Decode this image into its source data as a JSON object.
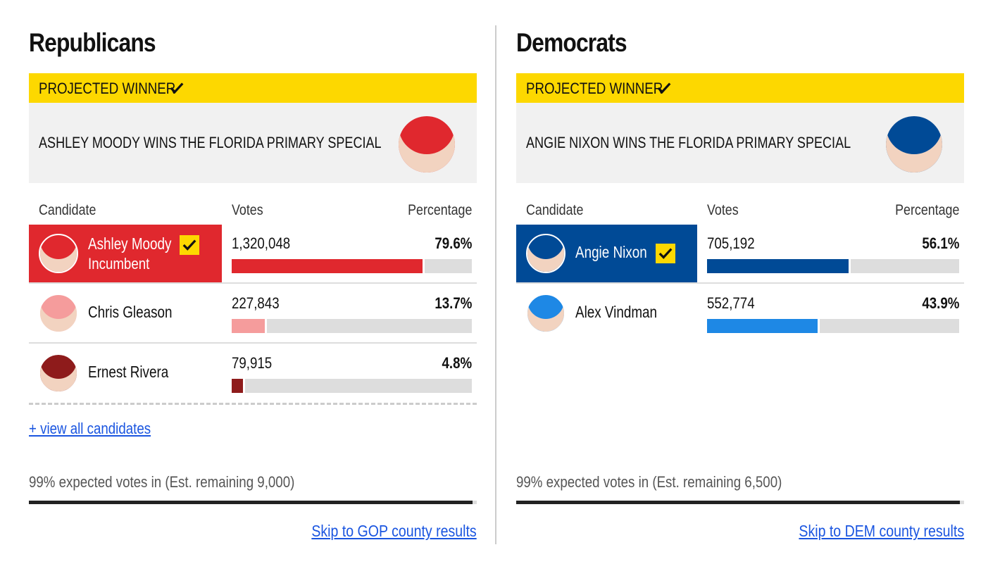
{
  "panels": [
    {
      "title": "Republicans",
      "banner": "PROJECTED WINNER",
      "headline": "ASHLEY MOODY WINS THE FLORIDA PRIMARY SPECIAL",
      "columns": [
        "Candidate",
        "Votes",
        "Percentage"
      ],
      "candidates": [
        {
          "name": "Ashley Moody",
          "note": "Incumbent",
          "votes": "1,320,048",
          "percent": 79.6,
          "percent_label": "79.6%",
          "color": "#e0282e",
          "winner": true
        },
        {
          "name": "Chris Gleason",
          "votes": "227,843",
          "percent": 13.7,
          "percent_label": "13.7%",
          "color": "#f59c9c",
          "winner": false
        },
        {
          "name": "Ernest Rivera",
          "votes": "79,915",
          "percent": 4.8,
          "percent_label": "4.8%",
          "color": "#8e1b1b",
          "winner": false
        }
      ],
      "view_all": "+ view all candidates",
      "reporting": {
        "text": "99% expected votes in (Est. remaining 9,000)",
        "percent": 99
      },
      "skip_link": "Skip to GOP county results"
    },
    {
      "title": "Democrats",
      "banner": "PROJECTED WINNER",
      "headline": "ANGIE NIXON WINS THE FLORIDA PRIMARY SPECIAL",
      "columns": [
        "Candidate",
        "Votes",
        "Percentage"
      ],
      "candidates": [
        {
          "name": "Angie Nixon",
          "votes": "705,192",
          "percent": 56.1,
          "percent_label": "56.1%",
          "color": "#004a96",
          "winner": true
        },
        {
          "name": "Alex Vindman",
          "votes": "552,774",
          "percent": 43.9,
          "percent_label": "43.9%",
          "color": "#1e88e5",
          "winner": false
        }
      ],
      "reporting": {
        "text": "99% expected votes in (Est. remaining 6,500)",
        "percent": 99
      },
      "skip_link": "Skip to DEM county results"
    }
  ]
}
